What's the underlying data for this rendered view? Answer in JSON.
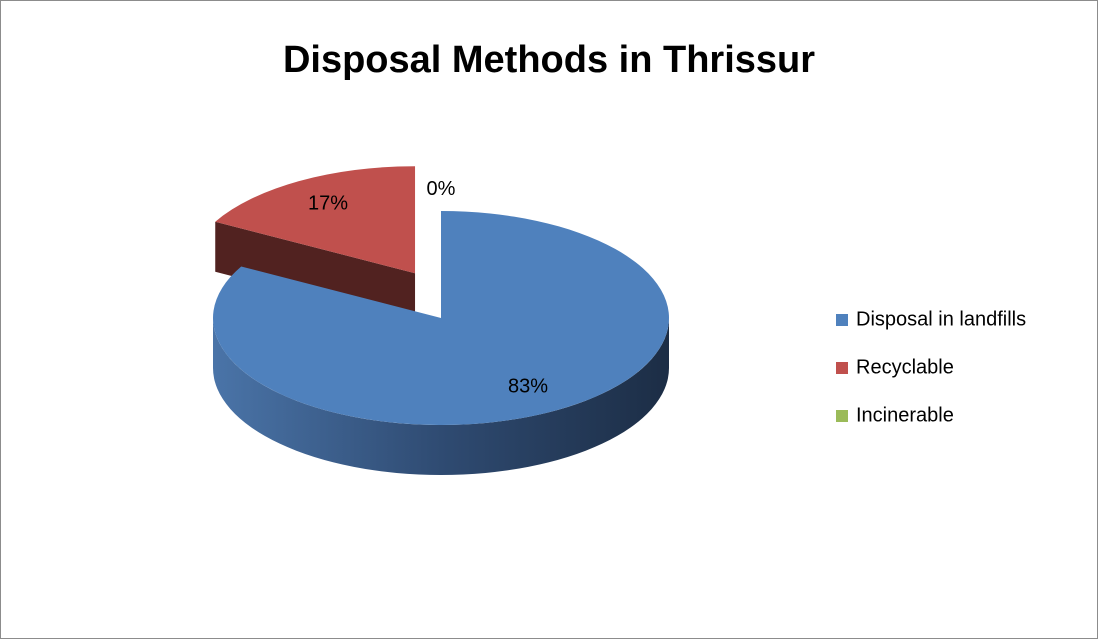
{
  "chart_data": {
    "type": "pie",
    "title": "Disposal Methods in Thrissur",
    "categories": [
      "Disposal in landfills",
      "Recyclable",
      "Incinerable"
    ],
    "values": [
      83,
      17,
      0
    ],
    "value_labels": [
      "83%",
      "17%",
      "0%"
    ],
    "colors": [
      "#4f81bd",
      "#c0504d",
      "#9bbb59"
    ],
    "explode": [
      false,
      true,
      false
    ],
    "legend": "right"
  }
}
